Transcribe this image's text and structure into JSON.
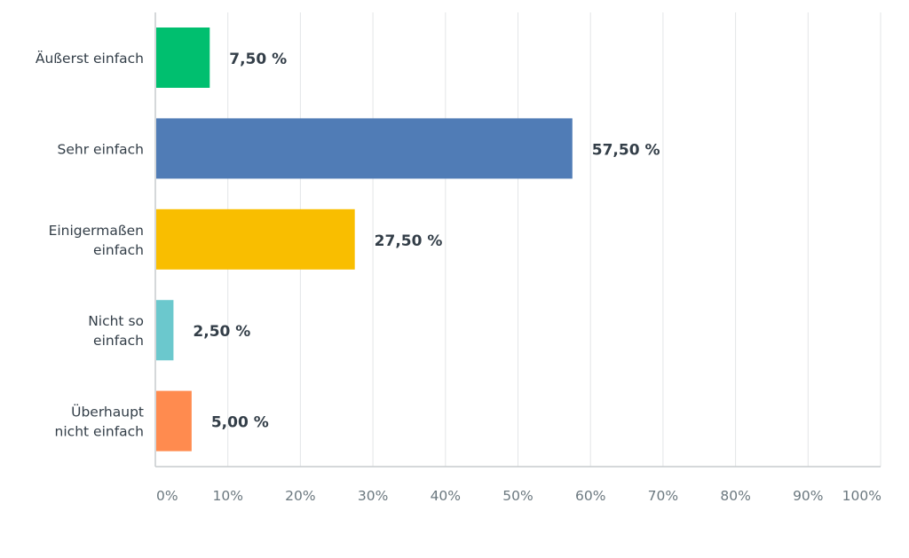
{
  "chart_data": {
    "type": "bar",
    "orientation": "horizontal",
    "categories": [
      [
        "Äußerst einfach"
      ],
      [
        "Sehr einfach"
      ],
      [
        "Einigermaßen",
        "einfach"
      ],
      [
        "Nicht so",
        "einfach"
      ],
      [
        "Überhaupt",
        "nicht einfach"
      ]
    ],
    "values": [
      7.5,
      57.5,
      27.5,
      2.5,
      5.0
    ],
    "value_labels": [
      "7,50 %",
      "57,50 %",
      "27,50 %",
      "2,50 %",
      "5,00 %"
    ],
    "colors": [
      "#00bf6f",
      "#507cb6",
      "#f9be00",
      "#6bc8cd",
      "#ff8b4f"
    ],
    "xlim": [
      0,
      100
    ],
    "xticks": [
      0,
      10,
      20,
      30,
      40,
      50,
      60,
      70,
      80,
      90,
      100
    ],
    "xtick_labels": [
      "0%",
      "10%",
      "20%",
      "30%",
      "40%",
      "50%",
      "60%",
      "70%",
      "80%",
      "90%",
      "100%"
    ],
    "grid": true,
    "title": "",
    "xlabel": "",
    "ylabel": ""
  }
}
